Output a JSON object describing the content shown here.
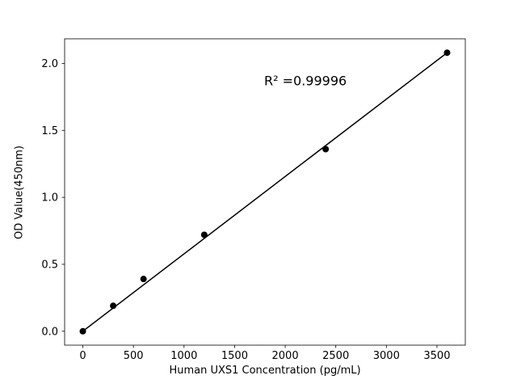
{
  "chart_data": {
    "type": "scatter",
    "title": "",
    "xlabel": "Human UXS1 Concentration (pg/mL)",
    "ylabel": "OD Value(450nm)",
    "x": [
      0,
      300,
      600,
      1200,
      2400,
      3600
    ],
    "y": [
      0.0,
      0.19,
      0.39,
      0.72,
      1.36,
      2.08
    ],
    "fit_line": {
      "x": [
        0,
        3600
      ],
      "y": [
        0.0,
        2.08
      ]
    },
    "annotation": {
      "text": "R² =0.99996",
      "x": 2200,
      "y": 1.87
    },
    "xlim": [
      -180,
      3780
    ],
    "ylim": [
      -0.104,
      2.184
    ],
    "xticks": [
      0,
      500,
      1000,
      1500,
      2000,
      2500,
      3000,
      3500
    ],
    "yticks": [
      0.0,
      0.5,
      1.0,
      1.5,
      2.0
    ],
    "grid": false,
    "legend": "none",
    "marker_color": "#000000",
    "line_color": "#000000",
    "axis_color": "#000000",
    "background": "#ffffff"
  }
}
